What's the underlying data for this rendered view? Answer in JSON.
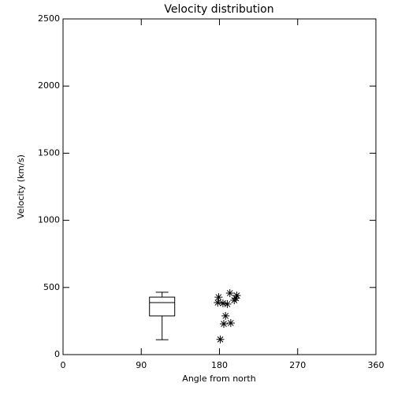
{
  "chart_data": {
    "type": "box",
    "title": "Velocity distribution",
    "x_label": "Angle from north",
    "y_label": "Velocity (km/s)",
    "xlim": [
      0,
      360
    ],
    "xticks": [
      0,
      90,
      180,
      270,
      360
    ],
    "ylim": [
      0,
      2500
    ],
    "yticks": [
      0,
      500,
      1000,
      1500,
      2000,
      2500
    ],
    "color": "#000000",
    "box": {
      "position": 114,
      "whisker_low": 111,
      "q1": 288,
      "median": 387,
      "q3": 428,
      "whisker_high": 464
    },
    "scatter": {
      "x": [
        179,
        178,
        184,
        189,
        192,
        197,
        199,
        200,
        187,
        193,
        185,
        181
      ],
      "y": [
        428,
        387,
        382,
        376,
        458,
        405,
        420,
        440,
        288,
        235,
        229,
        113
      ]
    }
  }
}
